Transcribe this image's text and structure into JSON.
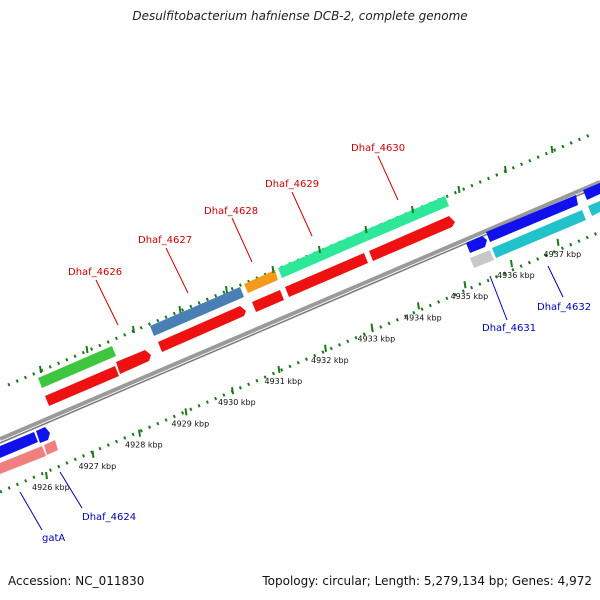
{
  "title": "Desulfitobacterium hafniense DCB-2, complete genome",
  "footer": {
    "accession": "Accession: NC_011830",
    "summary": "Topology: circular; Length: 5,279,134 bp; Genes: 4,972"
  },
  "colors": {
    "top_label": "#cc0000",
    "bottom_label": "#0000bb",
    "backbone": "#8c8c8c",
    "dots": "#1a7a1a"
  },
  "scale": {
    "ticks": [
      {
        "label": "4926 kbp"
      },
      {
        "label": "4927 kbp"
      },
      {
        "label": "4928 kbp"
      },
      {
        "label": "4929 kbp"
      },
      {
        "label": "4930 kbp"
      },
      {
        "label": "4931 kbp"
      },
      {
        "label": "4932 kbp"
      },
      {
        "label": "4933 kbp"
      },
      {
        "label": "4934 kbp"
      },
      {
        "label": "4935 kbp"
      },
      {
        "label": "4936 kbp"
      },
      {
        "label": "4937 kbp"
      }
    ]
  },
  "genes": [
    {
      "label": "Dhaf_4626",
      "side": "top"
    },
    {
      "label": "Dhaf_4627",
      "side": "top"
    },
    {
      "label": "Dhaf_4628",
      "side": "top"
    },
    {
      "label": "Dhaf_4629",
      "side": "top"
    },
    {
      "label": "Dhaf_4630",
      "side": "top"
    },
    {
      "label": "Dhaf_4631",
      "side": "bottom"
    },
    {
      "label": "Dhaf_4632",
      "side": "bottom"
    },
    {
      "label": "Dhaf_4624",
      "side": "bottom"
    },
    {
      "label": "gatA",
      "side": "bottom"
    }
  ]
}
